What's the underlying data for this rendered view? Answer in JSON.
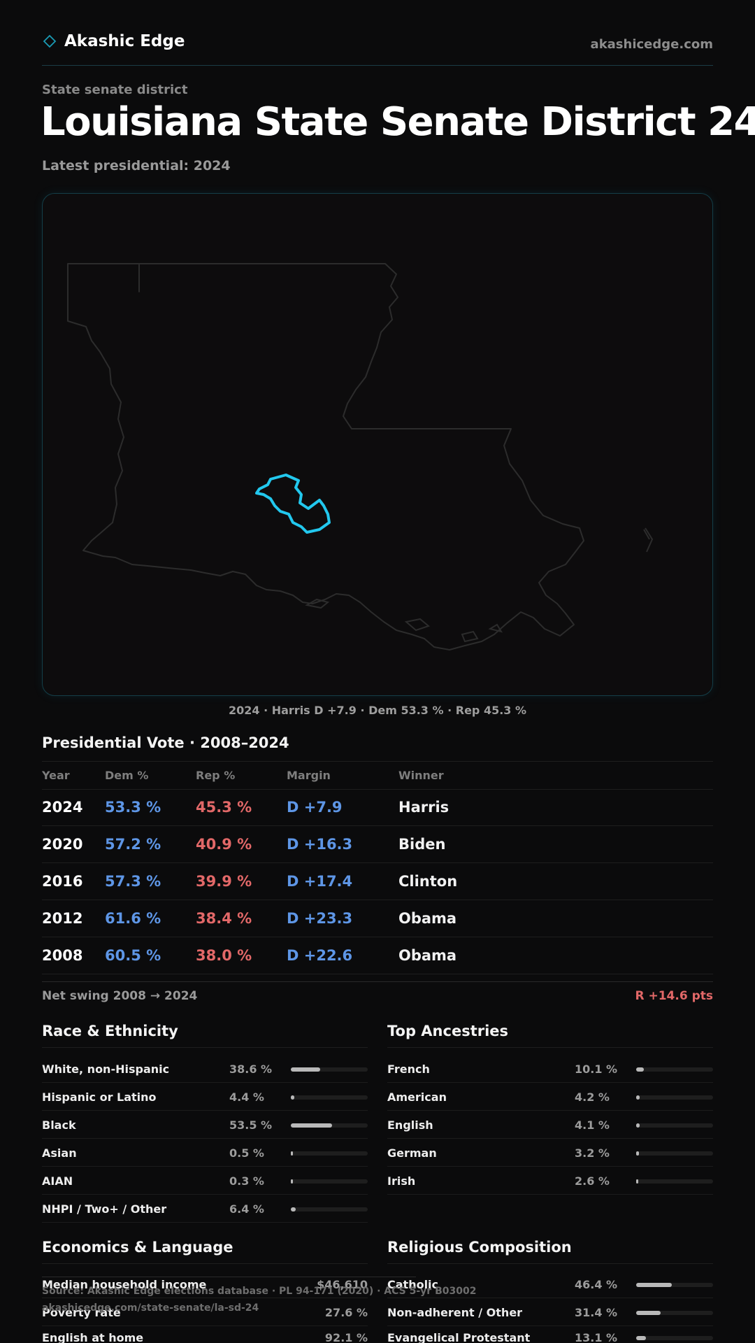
{
  "header": {
    "brand_name": "Akashic Edge",
    "brand_icon": "diamond-icon",
    "site_link": "akashicedge.com",
    "accent_color": "#1a9bb5"
  },
  "page": {
    "kicker": "State senate district",
    "title": "Louisiana State Senate District 24",
    "subtitle": "Latest presidential: 2024"
  },
  "map": {
    "state": "Louisiana",
    "highlight_color": "#22c8ee",
    "caption": "2024 · Harris D +7.9 · Dem 53.3 % · Rep 45.3 %"
  },
  "presidential": {
    "title": "Presidential Vote · 2008–2024",
    "headers": [
      "Year",
      "Dem %",
      "Rep %",
      "Margin",
      "Winner"
    ],
    "rows": [
      {
        "year": "2024",
        "dem": "53.3 %",
        "rep": "45.3 %",
        "margin": "D +7.9",
        "winner": "Harris"
      },
      {
        "year": "2020",
        "dem": "57.2 %",
        "rep": "40.9 %",
        "margin": "D +16.3",
        "winner": "Biden"
      },
      {
        "year": "2016",
        "dem": "57.3 %",
        "rep": "39.9 %",
        "margin": "D +17.4",
        "winner": "Clinton"
      },
      {
        "year": "2012",
        "dem": "61.6 %",
        "rep": "38.4 %",
        "margin": "D +23.3",
        "winner": "Obama"
      },
      {
        "year": "2008",
        "dem": "60.5 %",
        "rep": "38.0 %",
        "margin": "D +22.6",
        "winner": "Obama"
      }
    ],
    "swing_label": "Net swing 2008 → 2024",
    "swing_value": "R +14.6 pts",
    "dem_color": "#5e96e6",
    "rep_color": "#e26868"
  },
  "race": {
    "title": "Race & Ethnicity",
    "rows": [
      {
        "label": "White, non-Hispanic",
        "pct": "38.6 %",
        "share": 0.386
      },
      {
        "label": "Hispanic or Latino",
        "pct": "4.4 %",
        "share": 0.044
      },
      {
        "label": "Black",
        "pct": "53.5 %",
        "share": 0.535
      },
      {
        "label": "Asian",
        "pct": "0.5 %",
        "share": 0.005
      },
      {
        "label": "AIAN",
        "pct": "0.3 %",
        "share": 0.003
      },
      {
        "label": "NHPI / Two+ / Other",
        "pct": "6.4 %",
        "share": 0.064
      }
    ]
  },
  "ancestry": {
    "title": "Top Ancestries",
    "rows": [
      {
        "label": "French",
        "pct": "10.1 %",
        "share": 0.101
      },
      {
        "label": "American",
        "pct": "4.2 %",
        "share": 0.042
      },
      {
        "label": "English",
        "pct": "4.1 %",
        "share": 0.041
      },
      {
        "label": "German",
        "pct": "3.2 %",
        "share": 0.032
      },
      {
        "label": "Irish",
        "pct": "2.6 %",
        "share": 0.026
      }
    ]
  },
  "economics": {
    "title": "Economics & Language",
    "rows": [
      {
        "label": "Median household income",
        "value": "$46,610"
      },
      {
        "label": "Poverty rate",
        "value": "27.6 %"
      },
      {
        "label": "English at home",
        "value": "92.1 %"
      }
    ]
  },
  "religion": {
    "title": "Religious Composition",
    "rows": [
      {
        "label": "Catholic",
        "pct": "46.4 %",
        "share": 0.464
      },
      {
        "label": "Non-adherent / Other",
        "pct": "31.4 %",
        "share": 0.314
      },
      {
        "label": "Evangelical Protestant",
        "pct": "13.1 %",
        "share": 0.131
      }
    ]
  },
  "footer": {
    "source": "Source: Akashic Edge elections database · PL 94-171 (2020) · ACS 5-yr B03002",
    "url": "akashicedge.com/state-senate/la-sd-24"
  }
}
